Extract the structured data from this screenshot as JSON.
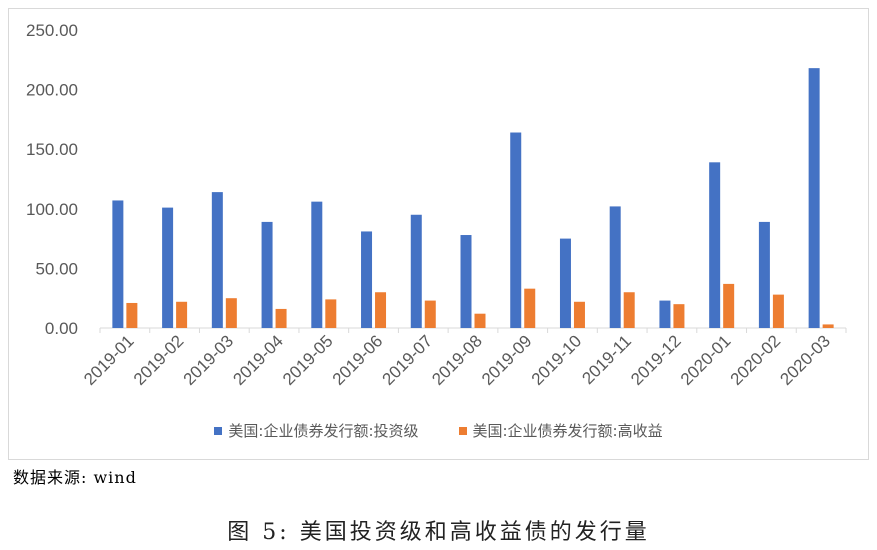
{
  "chart_data": {
    "type": "bar",
    "categories": [
      "2019-01",
      "2019-02",
      "2019-03",
      "2019-04",
      "2019-05",
      "2019-06",
      "2019-07",
      "2019-08",
      "2019-09",
      "2019-10",
      "2019-11",
      "2019-12",
      "2020-01",
      "2020-02",
      "2020-03"
    ],
    "series": [
      {
        "name": "美国:企业债券发行额:投资级",
        "color": "#4472c4",
        "values": [
          107,
          101,
          114,
          89,
          106,
          81,
          95,
          78,
          164,
          75,
          102,
          23,
          139,
          89,
          218
        ]
      },
      {
        "name": "美国:企业债券发行额:高收益",
        "color": "#ed7d31",
        "values": [
          21,
          22,
          25,
          16,
          24,
          30,
          23,
          12,
          33,
          22,
          30,
          20,
          37,
          28,
          3
        ]
      }
    ],
    "ylim": [
      0,
      250
    ],
    "yticks": [
      "0.00",
      "50.00",
      "100.00",
      "150.00",
      "200.00",
      "250.00"
    ],
    "grid": false,
    "legend_position": "bottom"
  },
  "source_text": "数据来源: wind",
  "caption": "图 5: 美国投资级和高收益债的发行量"
}
